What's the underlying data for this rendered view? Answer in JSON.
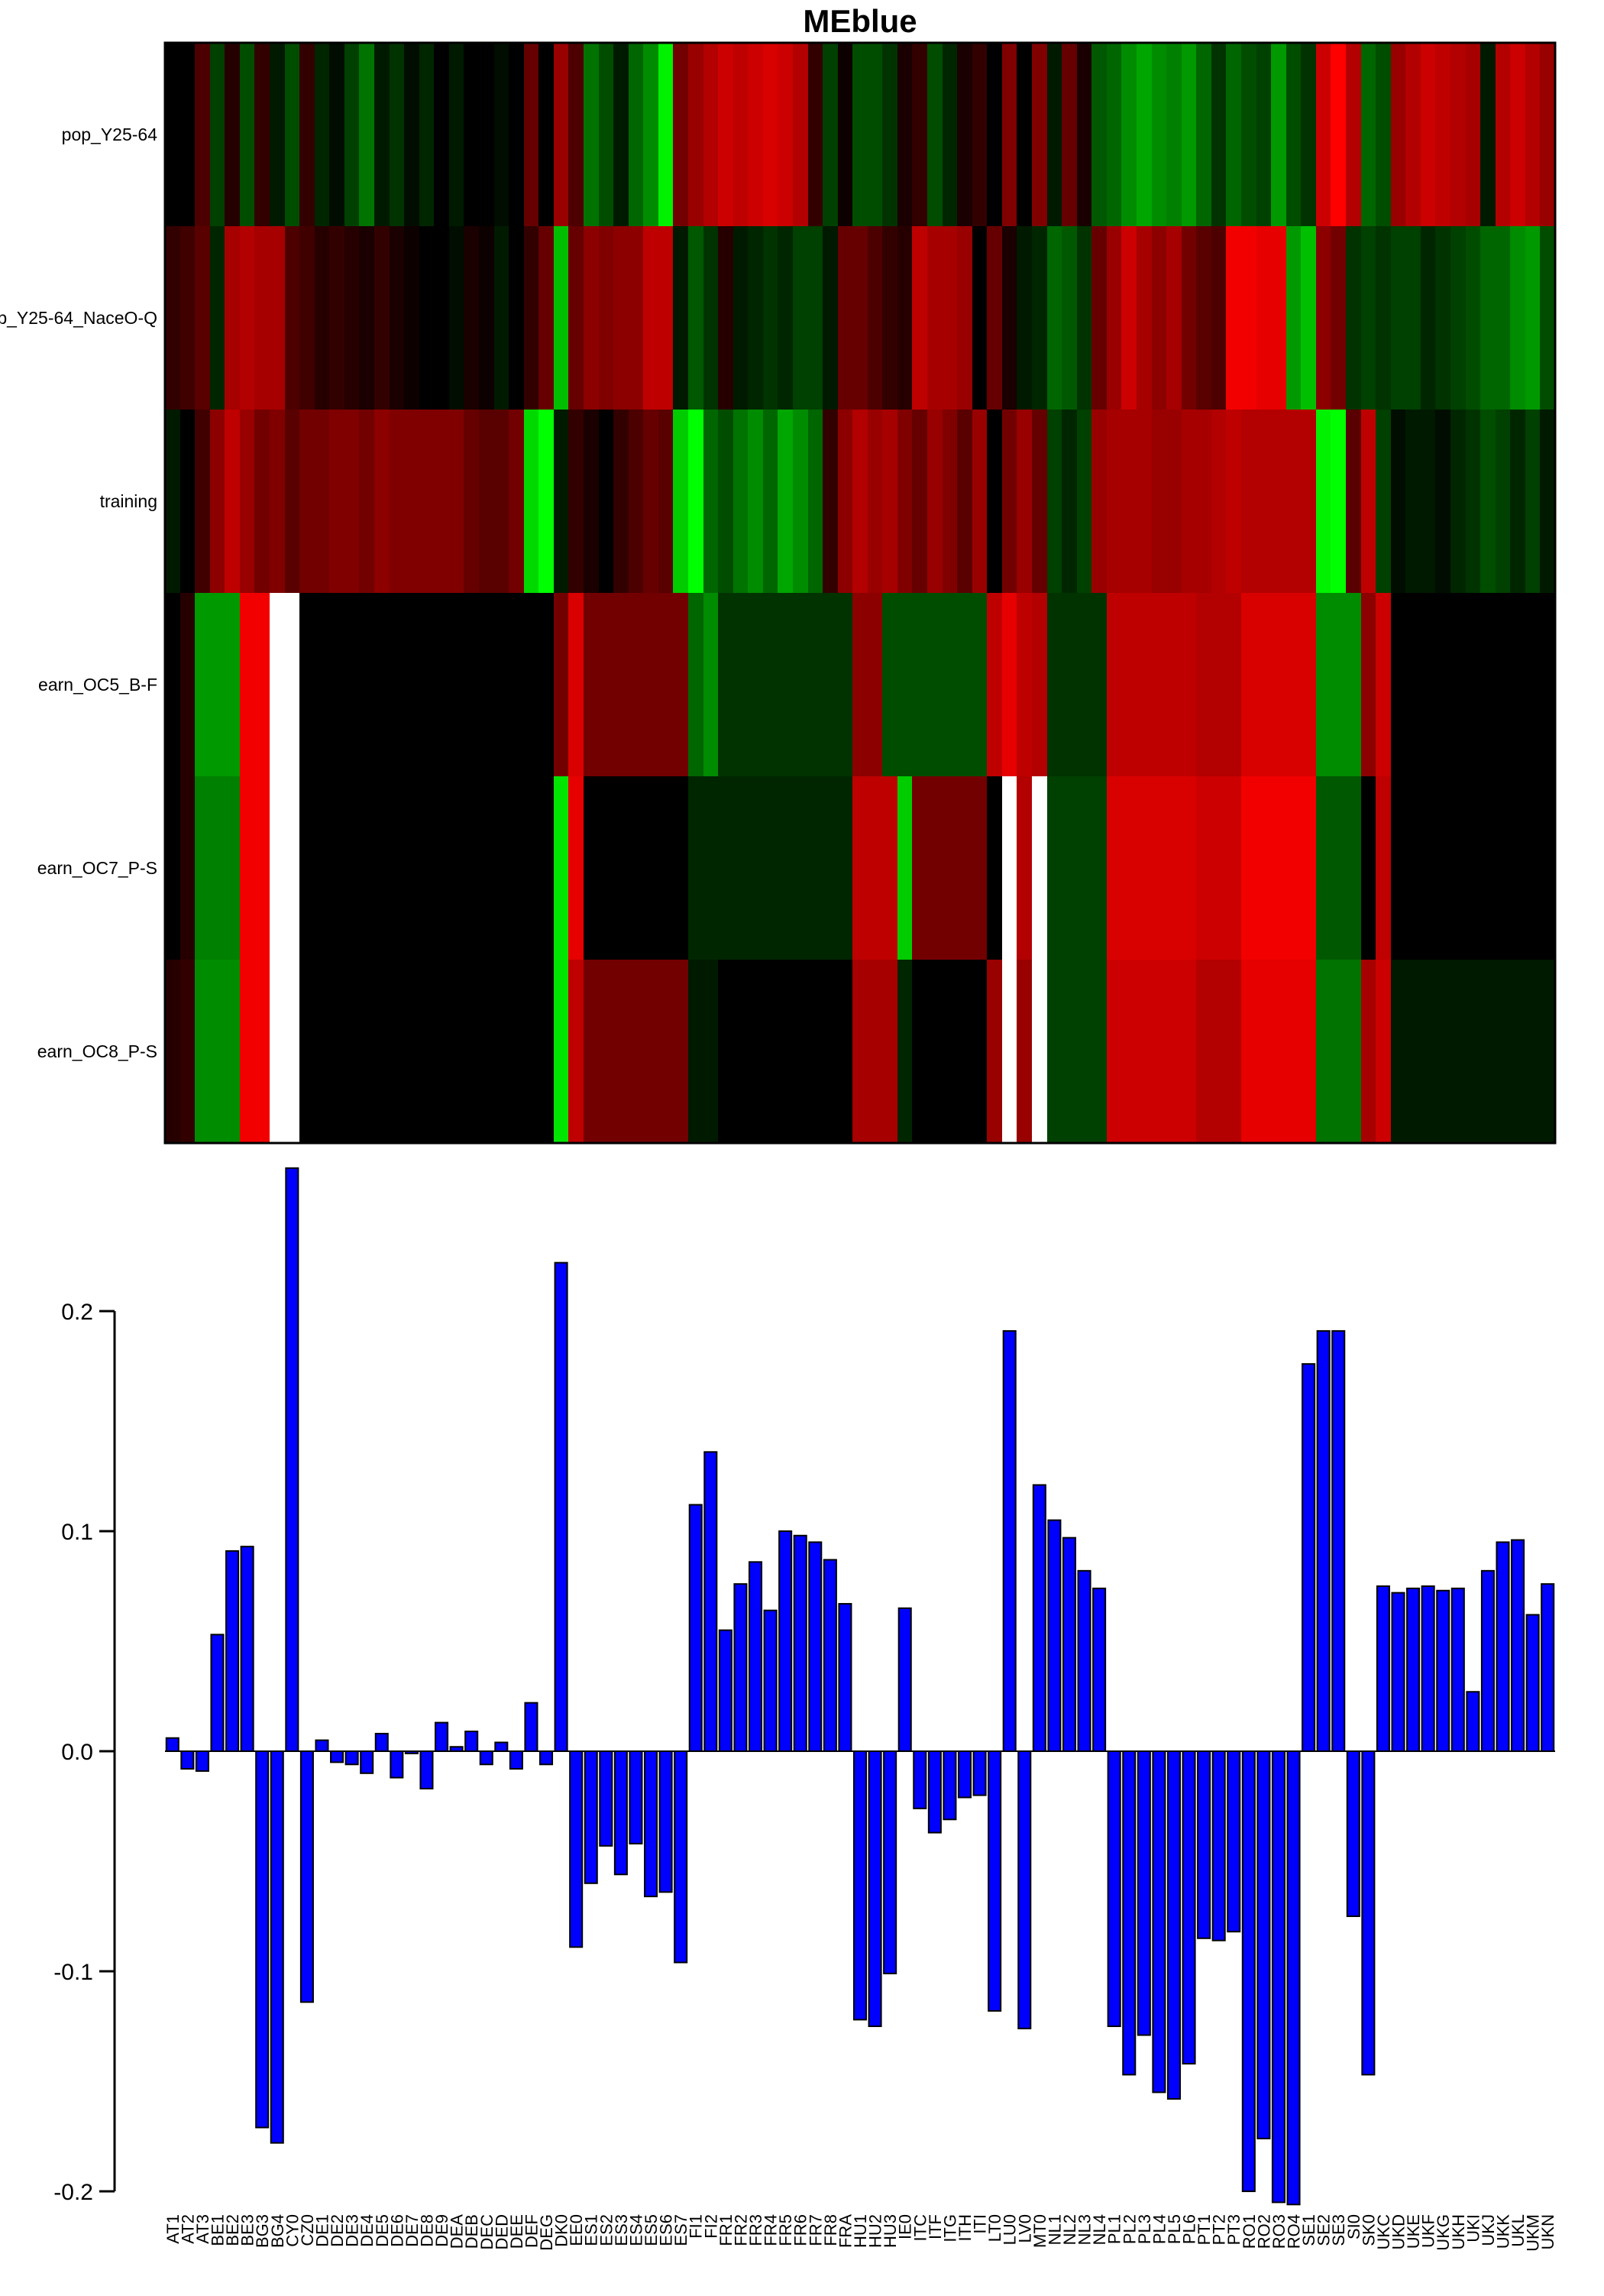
{
  "chart_data": [
    {
      "type": "heatmap",
      "title": "MEblue",
      "rows": [
        "pop_Y25-64",
        "pop_Y25-64_NaceO-Q",
        "training",
        "earn_OC5_B-F",
        "earn_OC7_P-S",
        "earn_OC8_P-S"
      ],
      "columns": [
        "AT1",
        "AT2",
        "AT3",
        "BE1",
        "BE2",
        "BE3",
        "BG3",
        "BG4",
        "CY0",
        "CZ0",
        "DE1",
        "DE2",
        "DE3",
        "DE4",
        "DE5",
        "DE6",
        "DE7",
        "DE8",
        "DE9",
        "DEA",
        "DEB",
        "DEC",
        "DED",
        "DEE",
        "DEF",
        "DEG",
        "DK0",
        "EE0",
        "ES1",
        "ES2",
        "ES3",
        "ES4",
        "ES5",
        "ES6",
        "ES7",
        "FI1",
        "FI2",
        "FR1",
        "FR2",
        "FR3",
        "FR4",
        "FR5",
        "FR6",
        "FR7",
        "FR8",
        "FRA",
        "HU1",
        "HU2",
        "HU3",
        "IE0",
        "ITC",
        "ITF",
        "ITG",
        "ITH",
        "ITI",
        "LT0",
        "LU0",
        "LV0",
        "MT0",
        "NL1",
        "NL2",
        "NL3",
        "NL4",
        "PL1",
        "PL2",
        "PL3",
        "PL4",
        "PL5",
        "PL6",
        "PT1",
        "PT2",
        "PT3",
        "RO1",
        "RO2",
        "RO3",
        "RO4",
        "SE1",
        "SE2",
        "SE3",
        "SI0",
        "SK0",
        "UKC",
        "UKD",
        "UKE",
        "UKF",
        "UKG",
        "UKH",
        "UKI",
        "UKJ",
        "UKK",
        "UKL",
        "UKM",
        "UKN"
      ],
      "color_scale": {
        "low": "#00ff00",
        "mid": "#000000",
        "high": "#ff0000",
        "top": "#ffffff"
      },
      "values": [
        [
          0.0,
          0.0,
          -0.3,
          0.25,
          -0.15,
          0.3,
          -0.2,
          0.1,
          0.3,
          -0.2,
          0.15,
          0.05,
          0.25,
          0.45,
          0.1,
          0.2,
          0.05,
          0.15,
          0.0,
          0.1,
          0.0,
          0.0,
          0.05,
          0.0,
          -0.4,
          0.0,
          -0.6,
          -0.3,
          0.45,
          0.3,
          0.1,
          0.4,
          0.55,
          0.95,
          -0.45,
          -0.6,
          -0.7,
          -0.8,
          -0.75,
          -0.8,
          -0.85,
          -0.8,
          -0.7,
          -0.2,
          0.25,
          -0.05,
          0.3,
          0.3,
          0.2,
          -0.1,
          -0.2,
          0.3,
          0.15,
          -0.1,
          -0.2,
          0.0,
          -0.5,
          0.0,
          -0.5,
          0.1,
          -0.4,
          -0.1,
          0.35,
          0.4,
          0.55,
          0.65,
          0.55,
          0.5,
          0.6,
          0.4,
          0.2,
          0.4,
          0.3,
          0.25,
          0.6,
          0.3,
          0.2,
          -0.8,
          -1.0,
          -0.7,
          0.4,
          0.3,
          -0.6,
          -0.7,
          -0.8,
          -0.75,
          -0.7,
          -0.65,
          0.1,
          -0.7,
          -0.8,
          -0.7,
          -0.6
        ],
        [
          -0.2,
          -0.25,
          -0.35,
          0.15,
          -0.65,
          -0.7,
          -0.65,
          -0.65,
          -0.3,
          -0.25,
          -0.15,
          -0.2,
          -0.15,
          -0.1,
          -0.2,
          -0.1,
          -0.05,
          0.0,
          0.0,
          0.05,
          -0.1,
          -0.05,
          0.1,
          0.0,
          -0.2,
          -0.4,
          0.75,
          -0.4,
          -0.55,
          -0.5,
          -0.55,
          -0.55,
          -0.75,
          -0.75,
          0.1,
          0.35,
          0.2,
          -0.15,
          0.1,
          0.15,
          0.2,
          0.15,
          0.25,
          0.25,
          0.1,
          -0.4,
          -0.4,
          -0.3,
          -0.2,
          -0.15,
          -0.75,
          -0.65,
          -0.65,
          -0.6,
          0.0,
          -0.4,
          -0.1,
          0.1,
          0.15,
          0.4,
          0.35,
          0.2,
          -0.4,
          -0.6,
          -0.8,
          -0.65,
          -0.55,
          -0.65,
          -0.45,
          -0.35,
          -0.3,
          -0.95,
          -0.95,
          -0.9,
          -0.9,
          0.6,
          0.75,
          -0.55,
          -0.45,
          0.2,
          0.25,
          0.2,
          0.25,
          0.25,
          0.15,
          0.2,
          0.25,
          0.3,
          0.4,
          0.4,
          0.55,
          0.6,
          0.3
        ],
        [
          0.1,
          0.0,
          -0.25,
          -0.55,
          -0.75,
          -0.6,
          -0.45,
          -0.5,
          -0.35,
          -0.45,
          -0.45,
          -0.5,
          -0.5,
          -0.45,
          -0.55,
          -0.5,
          -0.5,
          -0.5,
          -0.5,
          -0.5,
          -0.4,
          -0.35,
          -0.35,
          -0.45,
          0.85,
          1.0,
          0.1,
          -0.2,
          -0.1,
          0.0,
          -0.2,
          -0.3,
          -0.4,
          -0.35,
          0.8,
          1.0,
          0.4,
          0.3,
          0.45,
          0.55,
          0.4,
          0.65,
          0.55,
          0.4,
          -0.2,
          -0.55,
          -0.7,
          -0.6,
          -0.65,
          -0.5,
          -0.4,
          -0.6,
          -0.5,
          -0.35,
          -0.6,
          0.0,
          -0.45,
          -0.6,
          -0.4,
          0.25,
          0.15,
          0.25,
          -0.6,
          -0.65,
          -0.65,
          -0.65,
          -0.6,
          -0.6,
          -0.65,
          -0.65,
          -0.7,
          -0.75,
          -0.7,
          -0.7,
          -0.7,
          -0.7,
          -0.7,
          0.95,
          1.0,
          -0.35,
          -0.75,
          0.25,
          0.05,
          0.1,
          0.1,
          0.05,
          0.15,
          0.2,
          0.3,
          0.25,
          0.15,
          0.25,
          0.1
        ],
        [
          0.0,
          -0.15,
          0.6,
          0.6,
          0.6,
          -0.95,
          -0.95,
          1.2,
          1.2,
          0.0,
          0.0,
          0.0,
          0.0,
          0.0,
          0.0,
          0.0,
          0.0,
          0.0,
          0.0,
          0.0,
          0.0,
          0.0,
          0.0,
          0.0,
          0.0,
          0.0,
          -0.45,
          -0.85,
          -0.45,
          -0.45,
          -0.45,
          -0.45,
          -0.45,
          -0.45,
          -0.45,
          0.4,
          0.55,
          0.2,
          0.2,
          0.2,
          0.2,
          0.2,
          0.2,
          0.2,
          0.2,
          0.2,
          -0.55,
          -0.55,
          0.3,
          0.3,
          0.3,
          0.3,
          0.3,
          0.3,
          0.3,
          -0.75,
          -0.9,
          -0.75,
          -0.7,
          0.2,
          0.2,
          0.2,
          0.2,
          -0.75,
          -0.75,
          -0.75,
          -0.75,
          -0.75,
          -0.75,
          -0.7,
          -0.7,
          -0.7,
          -0.85,
          -0.85,
          -0.85,
          -0.85,
          -0.85,
          0.55,
          0.55,
          0.55,
          -0.55,
          -0.8,
          0.0,
          0.0,
          0.0,
          0.0,
          0.0,
          0.0,
          0.0,
          0.0,
          0.0,
          0.0,
          0.0
        ],
        [
          0.0,
          -0.15,
          0.5,
          0.5,
          0.5,
          -0.95,
          -0.95,
          1.2,
          1.2,
          0.0,
          0.0,
          0.0,
          0.0,
          0.0,
          0.0,
          0.0,
          0.0,
          0.0,
          0.0,
          0.0,
          0.0,
          0.0,
          0.0,
          0.0,
          0.0,
          0.0,
          0.9,
          -0.9,
          0.0,
          0.0,
          0.0,
          0.0,
          0.0,
          0.0,
          0.0,
          0.15,
          0.15,
          0.15,
          0.15,
          0.15,
          0.15,
          0.15,
          0.15,
          0.15,
          0.15,
          0.15,
          -0.75,
          -0.75,
          -0.75,
          0.8,
          -0.45,
          -0.45,
          -0.45,
          -0.45,
          -0.45,
          0.0,
          1.2,
          -0.7,
          1.2,
          0.25,
          0.25,
          0.25,
          0.25,
          -0.85,
          -0.85,
          -0.85,
          -0.85,
          -0.85,
          -0.85,
          -0.8,
          -0.8,
          -0.8,
          -0.95,
          -0.95,
          -0.95,
          -0.95,
          -0.95,
          0.35,
          0.35,
          0.35,
          0.0,
          -0.75,
          0.0,
          0.0,
          0.0,
          0.0,
          0.0,
          0.0,
          0.0,
          0.0,
          0.0,
          0.0,
          0.0
        ],
        [
          -0.15,
          -0.2,
          0.55,
          0.55,
          0.55,
          -0.95,
          -0.95,
          1.2,
          1.2,
          0.0,
          0.0,
          0.0,
          0.0,
          0.0,
          0.0,
          0.0,
          0.0,
          0.0,
          0.0,
          0.0,
          0.0,
          0.0,
          0.0,
          0.0,
          0.0,
          0.0,
          0.9,
          -0.75,
          -0.45,
          -0.45,
          -0.45,
          -0.45,
          -0.45,
          -0.45,
          -0.45,
          0.1,
          0.1,
          0.0,
          0.0,
          0.0,
          0.0,
          0.0,
          0.0,
          0.0,
          0.0,
          0.0,
          -0.65,
          -0.65,
          -0.65,
          0.15,
          0.0,
          0.0,
          0.0,
          0.0,
          0.0,
          -0.6,
          1.2,
          -0.6,
          1.2,
          0.25,
          0.25,
          0.25,
          0.25,
          -0.8,
          -0.8,
          -0.8,
          -0.8,
          -0.8,
          -0.8,
          -0.7,
          -0.7,
          -0.7,
          -0.9,
          -0.9,
          -0.9,
          -0.9,
          -0.9,
          0.45,
          0.45,
          0.45,
          -0.65,
          -0.8,
          0.1,
          0.1,
          0.1,
          0.1,
          0.1,
          0.1,
          0.1,
          0.1,
          0.1,
          0.1,
          0.1
        ]
      ]
    },
    {
      "type": "bar",
      "categories": [
        "AT1",
        "AT2",
        "AT3",
        "BE1",
        "BE2",
        "BE3",
        "BG3",
        "BG4",
        "CY0",
        "CZ0",
        "DE1",
        "DE2",
        "DE3",
        "DE4",
        "DE5",
        "DE6",
        "DE7",
        "DE8",
        "DE9",
        "DEA",
        "DEB",
        "DEC",
        "DED",
        "DEE",
        "DEF",
        "DEG",
        "DK0",
        "EE0",
        "ES1",
        "ES2",
        "ES3",
        "ES4",
        "ES5",
        "ES6",
        "ES7",
        "FI1",
        "FI2",
        "FR1",
        "FR2",
        "FR3",
        "FR4",
        "FR5",
        "FR6",
        "FR7",
        "FR8",
        "FRA",
        "HU1",
        "HU2",
        "HU3",
        "IE0",
        "ITC",
        "ITF",
        "ITG",
        "ITH",
        "ITI",
        "LT0",
        "LU0",
        "LV0",
        "MT0",
        "NL1",
        "NL2",
        "NL3",
        "NL4",
        "PL1",
        "PL2",
        "PL3",
        "PL4",
        "PL5",
        "PL6",
        "PT1",
        "PT2",
        "PT3",
        "RO1",
        "RO2",
        "RO3",
        "RO4",
        "SE1",
        "SE2",
        "SE3",
        "SI0",
        "SK0",
        "UKC",
        "UKD",
        "UKE",
        "UKF",
        "UKG",
        "UKH",
        "UKI",
        "UKJ",
        "UKK",
        "UKL",
        "UKM",
        "UKN"
      ],
      "values": [
        0.006,
        -0.008,
        -0.009,
        0.053,
        0.091,
        0.093,
        -0.171,
        -0.178,
        0.265,
        -0.114,
        0.005,
        -0.005,
        -0.006,
        -0.01,
        0.008,
        -0.012,
        -0.001,
        -0.017,
        0.013,
        0.002,
        0.009,
        -0.006,
        0.004,
        -0.008,
        0.022,
        -0.006,
        0.222,
        -0.089,
        -0.06,
        -0.043,
        -0.056,
        -0.042,
        -0.066,
        -0.064,
        -0.096,
        0.112,
        0.136,
        0.055,
        0.076,
        0.086,
        0.064,
        0.1,
        0.098,
        0.095,
        0.087,
        0.067,
        -0.122,
        -0.125,
        -0.101,
        0.065,
        -0.026,
        -0.037,
        -0.031,
        -0.021,
        -0.02,
        -0.118,
        0.191,
        -0.126,
        0.121,
        0.105,
        0.097,
        0.082,
        0.074,
        -0.125,
        -0.147,
        -0.129,
        -0.155,
        -0.158,
        -0.142,
        -0.085,
        -0.086,
        -0.082,
        -0.2,
        -0.176,
        -0.205,
        -0.206,
        0.176,
        0.191,
        0.191,
        -0.075,
        -0.147,
        0.075,
        0.072,
        0.074,
        0.075,
        0.073,
        0.074,
        0.027,
        0.082,
        0.095,
        0.096,
        0.062,
        0.076
      ],
      "ylim": [
        -0.2,
        0.27
      ],
      "yticks": [
        -0.2,
        -0.1,
        0.0,
        0.1,
        0.2
      ],
      "ytick_labels": [
        "-0.2",
        "-0.1",
        "0.0",
        "0.1",
        "0.2"
      ],
      "bar_color": "#0000ff"
    }
  ]
}
